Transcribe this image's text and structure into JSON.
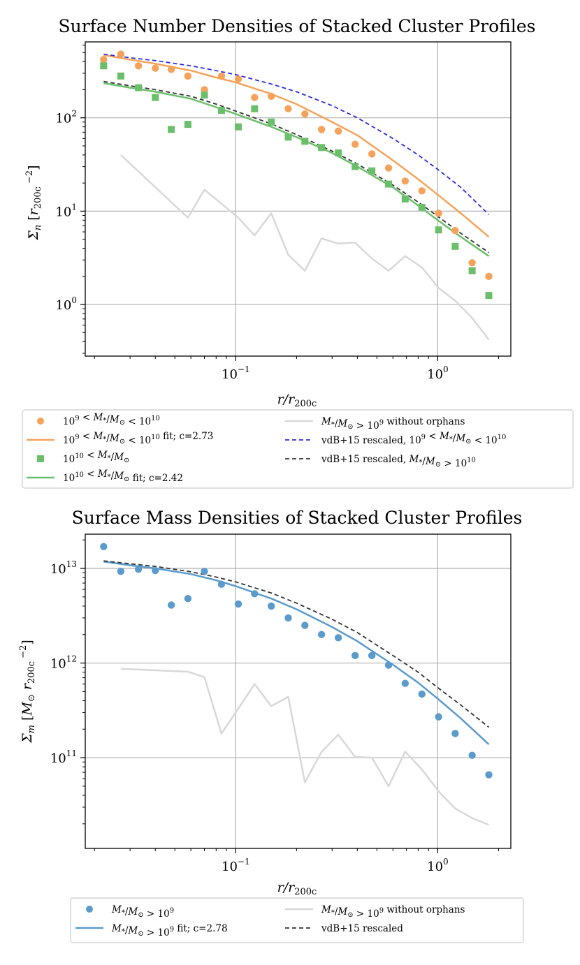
{
  "chart_data": [
    {
      "type": "scatter",
      "title": "Surface Number Densities of Stacked Cluster Profiles",
      "xlabel": "r/r200c",
      "ylabel": "Σn [r200c −2]",
      "xscale": "log",
      "yscale": "log",
      "xlim": [
        0.018,
        2.3
      ],
      "ylim": [
        0.28,
        650
      ],
      "grid": true,
      "x_ticks": [
        {
          "value": 0.1,
          "base": "10",
          "exp": "−1"
        },
        {
          "value": 1,
          "base": "10",
          "exp": "0"
        }
      ],
      "y_ticks": [
        {
          "value": 1,
          "base": "10",
          "exp": "0"
        },
        {
          "value": 10,
          "base": "10",
          "exp": "1"
        },
        {
          "value": 100,
          "base": "10",
          "exp": "2"
        }
      ],
      "series": [
        {
          "name": "10^9 < M*/M⊙ < 10^10",
          "kind": "points",
          "marker": "circle",
          "color": "#f5a35a",
          "x": [
            0.0222,
            0.027,
            0.033,
            0.04,
            0.048,
            0.058,
            0.07,
            0.085,
            0.103,
            0.124,
            0.15,
            0.182,
            0.22,
            0.266,
            0.322,
            0.39,
            0.472,
            0.571,
            0.69,
            0.835,
            1.01,
            1.22,
            1.48,
            1.79
          ],
          "y": [
            420,
            480,
            360,
            340,
            330,
            280,
            200,
            280,
            260,
            165,
            170,
            125,
            110,
            75,
            72,
            52,
            41,
            29,
            21,
            16.5,
            9.5,
            6.2,
            2.8,
            2.0
          ]
        },
        {
          "name": "10^9 < M*/M⊙ < 10^10 fit; c=2.73",
          "kind": "line",
          "style": "solid",
          "color": "#f5a35a",
          "x": [
            0.0222,
            0.03,
            0.04,
            0.06,
            0.08,
            0.1,
            0.15,
            0.2,
            0.3,
            0.4,
            0.6,
            0.8,
            1.0,
            1.3,
            1.79
          ],
          "y": [
            470,
            420,
            380,
            320,
            270,
            240,
            180,
            140,
            90,
            65,
            35,
            22,
            15,
            9.5,
            5.3
          ]
        },
        {
          "name": "10^10 < M*/M⊙",
          "kind": "points",
          "marker": "square",
          "color": "#6bbf6b",
          "x": [
            0.0222,
            0.027,
            0.033,
            0.04,
            0.048,
            0.058,
            0.07,
            0.085,
            0.103,
            0.124,
            0.15,
            0.182,
            0.22,
            0.266,
            0.322,
            0.39,
            0.472,
            0.571,
            0.69,
            0.835,
            1.01,
            1.22,
            1.48,
            1.79
          ],
          "y": [
            360,
            280,
            210,
            165,
            75,
            85,
            175,
            120,
            80,
            125,
            90,
            62,
            56,
            48,
            42,
            30,
            27,
            19.5,
            13.5,
            11,
            6.3,
            4.2,
            2.3,
            1.25
          ]
        },
        {
          "name": "10^10 < M*/M⊙ fit; c=2.42",
          "kind": "line",
          "style": "solid",
          "color": "#6bbf6b",
          "x": [
            0.0222,
            0.03,
            0.04,
            0.06,
            0.08,
            0.1,
            0.15,
            0.2,
            0.3,
            0.4,
            0.6,
            0.8,
            1.0,
            1.3,
            1.79
          ],
          "y": [
            235,
            210,
            190,
            160,
            130,
            110,
            80,
            62,
            42,
            30,
            18,
            11.5,
            8,
            5.3,
            3.3
          ]
        },
        {
          "name": "M*/M⊙ > 10^9 without orphans",
          "kind": "line",
          "style": "solid",
          "color": "#d8d8d8",
          "x": [
            0.027,
            0.058,
            0.07,
            0.085,
            0.103,
            0.124,
            0.15,
            0.182,
            0.22,
            0.266,
            0.322,
            0.39,
            0.472,
            0.571,
            0.69,
            0.835,
            1.01,
            1.22,
            1.48,
            1.79
          ],
          "y": [
            40,
            8.5,
            17,
            12,
            8.5,
            5.5,
            9.5,
            3.4,
            2.3,
            5.1,
            4.5,
            4.6,
            3.1,
            2.3,
            3.3,
            2.5,
            1.5,
            1.1,
            0.72,
            0.42
          ]
        },
        {
          "name": "vdB+15 rescaled, 10^9 < M*/M⊙ < 10^10",
          "kind": "line",
          "style": "dashed",
          "color": "#2d2ddd",
          "x": [
            0.0222,
            0.03,
            0.04,
            0.06,
            0.08,
            0.1,
            0.15,
            0.2,
            0.3,
            0.4,
            0.6,
            0.8,
            1.0,
            1.3,
            1.79
          ],
          "y": [
            480,
            440,
            410,
            360,
            320,
            290,
            230,
            190,
            135,
            100,
            60,
            40,
            28,
            18,
            9.2
          ]
        },
        {
          "name": "vdB+15 rescaled, M*/M⊙ > 10^10",
          "kind": "line",
          "style": "dashed",
          "color": "#333333",
          "x": [
            0.0222,
            0.03,
            0.04,
            0.06,
            0.08,
            0.1,
            0.15,
            0.2,
            0.3,
            0.4,
            0.6,
            0.8,
            1.0,
            1.3,
            1.79
          ],
          "y": [
            245,
            220,
            200,
            170,
            140,
            118,
            86,
            66,
            44,
            32,
            19,
            12.5,
            8.8,
            5.8,
            3.6
          ]
        }
      ],
      "legend": {
        "location": "below",
        "columns": [
          [
            {
              "marker": "circle",
              "color": "#f5a35a",
              "label": "10^9 < M*/M⊙ < 10^10"
            },
            {
              "line": "solid",
              "color": "#f5a35a",
              "label": "10^9 < M*/M⊙ < 10^10 fit; c=2.73"
            },
            {
              "marker": "square",
              "color": "#6bbf6b",
              "label": "10^10 < M*/M⊙"
            },
            {
              "line": "solid",
              "color": "#6bbf6b",
              "label": "10^10 < M*/M⊙ fit; c=2.42"
            }
          ],
          [
            {
              "line": "solid",
              "color": "#d8d8d8",
              "label": "M*/M⊙ > 10^9 without orphans"
            },
            {
              "line": "dashed",
              "color": "#2d2ddd",
              "label": "vdB+15 rescaled, 10^9 < M*/M⊙ < 10^10"
            },
            {
              "line": "dashed",
              "color": "#333333",
              "label": "vdB+15 rescaled, M*/M⊙ > 10^10"
            }
          ]
        ]
      }
    },
    {
      "type": "scatter",
      "title": "Surface Mass Densities of Stacked Cluster Profiles",
      "xlabel": "r/r200c",
      "ylabel": "Σm [M⊙ r200c −2]",
      "xscale": "log",
      "yscale": "log",
      "xlim": [
        0.018,
        2.3
      ],
      "ylim": [
        11000000000.0,
        23000000000000.0
      ],
      "grid": true,
      "x_ticks": [
        {
          "value": 0.1,
          "base": "10",
          "exp": "−1"
        },
        {
          "value": 1,
          "base": "10",
          "exp": "0"
        }
      ],
      "y_ticks": [
        {
          "value": 100000000000.0,
          "base": "10",
          "exp": "11"
        },
        {
          "value": 1000000000000.0,
          "base": "10",
          "exp": "12"
        },
        {
          "value": 10000000000000.0,
          "base": "10",
          "exp": "13"
        }
      ],
      "series": [
        {
          "name": "M*/M⊙ > 10^9",
          "kind": "points",
          "marker": "circle",
          "color": "#5b9bcc",
          "x": [
            0.0222,
            0.027,
            0.033,
            0.04,
            0.048,
            0.058,
            0.07,
            0.085,
            0.103,
            0.124,
            0.15,
            0.182,
            0.22,
            0.266,
            0.322,
            0.39,
            0.472,
            0.571,
            0.69,
            0.835,
            1.01,
            1.22,
            1.48,
            1.79
          ],
          "y": [
            17000000000000.0,
            9300000000000.0,
            9800000000000.0,
            9500000000000.0,
            4100000000000.0,
            4800000000000.0,
            9300000000000.0,
            6800000000000.0,
            4200000000000.0,
            5400000000000.0,
            4000000000000.0,
            3000000000000.0,
            2500000000000.0,
            2000000000000.0,
            1850000000000.0,
            1200000000000.0,
            1200000000000.0,
            950000000000.0,
            610000000000.0,
            470000000000.0,
            270000000000.0,
            180000000000.0,
            106000000000.0,
            66000000000.0
          ]
        },
        {
          "name": "M*/M⊙ > 10^9 fit; c=2.78",
          "kind": "line",
          "style": "solid",
          "color": "#5b9bcc",
          "x": [
            0.0222,
            0.03,
            0.04,
            0.06,
            0.08,
            0.1,
            0.15,
            0.2,
            0.3,
            0.4,
            0.6,
            0.8,
            1.0,
            1.3,
            1.79
          ],
          "y": [
            11800000000000.0,
            10800000000000.0,
            10000000000000.0,
            8700000000000.0,
            7500000000000.0,
            6500000000000.0,
            4800000000000.0,
            3700000000000.0,
            2400000000000.0,
            1700000000000.0,
            960000000000.0,
            620000000000.0,
            420000000000.0,
            260000000000.0,
            138000000000.0
          ]
        },
        {
          "name": "M*/M⊙ > 10^9 without orphans",
          "kind": "line",
          "style": "solid",
          "color": "#d8d8d8",
          "x": [
            0.027,
            0.058,
            0.07,
            0.085,
            0.103,
            0.124,
            0.15,
            0.182,
            0.22,
            0.266,
            0.322,
            0.39,
            0.472,
            0.571,
            0.69,
            0.835,
            1.01,
            1.22,
            1.48,
            1.79
          ],
          "y": [
            870000000000.0,
            810000000000.0,
            710000000000.0,
            180000000000.0,
            330000000000.0,
            600000000000.0,
            350000000000.0,
            440000000000.0,
            55000000000.0,
            115000000000.0,
            175000000000.0,
            102000000000.0,
            100000000000.0,
            50000000000.0,
            116000000000.0,
            75000000000.0,
            44000000000.0,
            29000000000.0,
            23000000000.0,
            19500000000.0
          ]
        },
        {
          "name": "vdB+15 rescaled",
          "kind": "line",
          "style": "dashed",
          "color": "#333333",
          "x": [
            0.0222,
            0.03,
            0.04,
            0.06,
            0.08,
            0.1,
            0.15,
            0.2,
            0.3,
            0.4,
            0.6,
            0.8,
            1.0,
            1.3,
            1.79
          ],
          "y": [
            12000000000000.0,
            11200000000000.0,
            10500000000000.0,
            9200000000000.0,
            8100000000000.0,
            7200000000000.0,
            5500000000000.0,
            4300000000000.0,
            2900000000000.0,
            2100000000000.0,
            1200000000000.0,
            800000000000.0,
            550000000000.0,
            360000000000.0,
            210000000000.0
          ]
        }
      ],
      "legend": {
        "location": "below",
        "columns": [
          [
            {
              "marker": "circle",
              "color": "#5b9bcc",
              "label": "M*/M⊙ > 10^9"
            },
            {
              "line": "solid",
              "color": "#5b9bcc",
              "label": "M*/M⊙ > 10^9 fit; c=2.78"
            }
          ],
          [
            {
              "line": "solid",
              "color": "#d8d8d8",
              "label": "M*/M⊙ > 10^9 without orphans"
            },
            {
              "line": "dashed",
              "color": "#333333",
              "label": "vdB+15 rescaled"
            }
          ]
        ]
      }
    }
  ]
}
